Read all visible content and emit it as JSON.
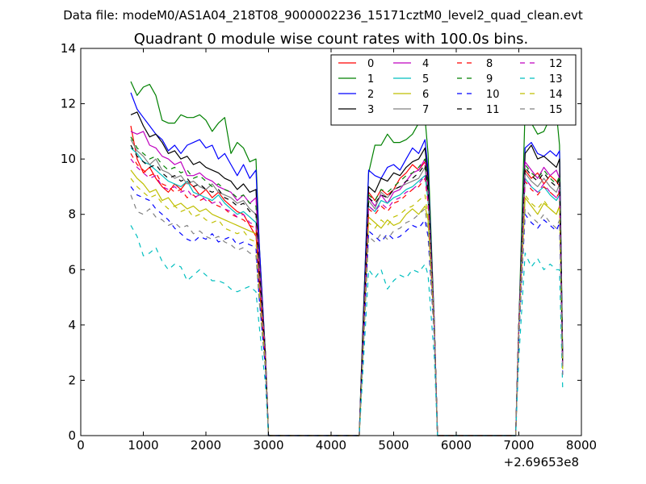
{
  "header": {
    "data_file_label": "Data file: modeM0/AS1A04_218T08_9000002236_15171cztM0_level2_quad_clean.evt"
  },
  "chart_data": {
    "type": "line",
    "title": "Quadrant 0 module wise count rates with 100.0s bins.",
    "xlabel": "",
    "ylabel": "",
    "x_offset_label": "+2.69653e8",
    "xlim": [
      0,
      8000
    ],
    "ylim": [
      0,
      14
    ],
    "xticks": [
      0,
      1000,
      2000,
      3000,
      4000,
      5000,
      6000,
      7000,
      8000
    ],
    "yticks": [
      0,
      2,
      4,
      6,
      8,
      10,
      12,
      14
    ],
    "grid": false,
    "legend_position": "top-right",
    "legend_columns": 4,
    "x": [
      800,
      900,
      1000,
      1100,
      1200,
      1300,
      1400,
      1500,
      1600,
      1700,
      1800,
      1900,
      2000,
      2100,
      2200,
      2300,
      2400,
      2500,
      2600,
      2700,
      2800,
      2850,
      2950,
      3000,
      3100,
      3500,
      4000,
      4400,
      4450,
      4500,
      4600,
      4700,
      4800,
      4900,
      5000,
      5100,
      5200,
      5300,
      5400,
      5500,
      5550,
      5650,
      5700,
      5800,
      6000,
      6500,
      6900,
      6950,
      7000,
      7100,
      7200,
      7300,
      7400,
      7500,
      7600,
      7650,
      7700
    ],
    "series": [
      {
        "name": "0",
        "color": "#ff0000",
        "dash": "solid",
        "values": [
          11.2,
          10.0,
          9.5,
          9.7,
          9.3,
          9.0,
          8.8,
          9.1,
          8.9,
          9.2,
          9.0,
          8.7,
          8.9,
          8.6,
          8.8,
          8.5,
          8.3,
          8.1,
          8.0,
          7.6,
          7.2,
          6.0,
          3.0,
          0.0,
          0.0,
          0.0,
          0.0,
          0.0,
          0.0,
          3.0,
          8.8,
          8.5,
          8.9,
          8.7,
          8.9,
          9.3,
          9.5,
          9.8,
          9.6,
          9.9,
          9.0,
          4.0,
          0.0,
          0.0,
          0.0,
          0.0,
          0.0,
          0.0,
          4.0,
          9.6,
          9.3,
          9.5,
          9.1,
          9.4,
          9.2,
          9.0,
          2.6
        ]
      },
      {
        "name": "1",
        "color": "#008000",
        "dash": "solid",
        "values": [
          12.8,
          12.3,
          12.6,
          12.7,
          12.3,
          11.4,
          11.3,
          11.3,
          11.6,
          11.5,
          11.5,
          11.6,
          11.4,
          11.0,
          11.3,
          11.5,
          10.2,
          10.6,
          10.4,
          9.9,
          10.0,
          7.0,
          3.0,
          0.0,
          0.0,
          0.0,
          0.0,
          0.0,
          0.0,
          3.5,
          9.5,
          10.5,
          10.5,
          10.9,
          10.6,
          10.6,
          10.7,
          10.9,
          11.3,
          11.5,
          10.2,
          4.0,
          0.0,
          0.0,
          0.0,
          0.0,
          0.0,
          0.0,
          4.0,
          11.8,
          11.3,
          10.9,
          11.0,
          11.5,
          11.7,
          10.5,
          3.0
        ]
      },
      {
        "name": "2",
        "color": "#0000ff",
        "dash": "solid",
        "values": [
          12.4,
          11.8,
          11.5,
          11.2,
          10.9,
          10.7,
          10.3,
          10.5,
          10.2,
          10.5,
          10.6,
          10.7,
          10.4,
          10.5,
          10.0,
          10.2,
          9.8,
          9.4,
          9.8,
          9.3,
          9.6,
          7.0,
          3.0,
          0.0,
          0.0,
          0.0,
          0.0,
          0.0,
          0.0,
          3.3,
          9.6,
          9.4,
          9.3,
          9.7,
          9.8,
          9.6,
          10.0,
          10.4,
          10.2,
          10.7,
          9.6,
          4.0,
          0.0,
          0.0,
          0.0,
          0.0,
          0.0,
          0.0,
          4.0,
          10.4,
          10.6,
          10.2,
          10.1,
          10.3,
          10.1,
          10.3,
          2.8
        ]
      },
      {
        "name": "3",
        "color": "#000000",
        "dash": "solid",
        "values": [
          11.6,
          11.7,
          11.2,
          10.8,
          10.9,
          10.6,
          10.2,
          10.3,
          10.0,
          10.1,
          9.8,
          9.9,
          9.7,
          9.6,
          9.5,
          9.3,
          9.2,
          8.9,
          9.1,
          8.8,
          8.9,
          6.5,
          3.0,
          0.0,
          0.0,
          0.0,
          0.0,
          0.0,
          0.0,
          3.2,
          9.0,
          8.8,
          9.3,
          9.2,
          9.5,
          9.4,
          9.7,
          9.9,
          10.0,
          10.4,
          9.3,
          4.0,
          0.0,
          0.0,
          0.0,
          0.0,
          0.0,
          0.0,
          4.0,
          10.2,
          10.5,
          10.0,
          10.1,
          9.9,
          9.7,
          10.0,
          2.7
        ]
      },
      {
        "name": "4",
        "color": "#bf00bf",
        "dash": "solid",
        "values": [
          11.0,
          10.9,
          11.0,
          10.5,
          10.4,
          10.1,
          10.0,
          9.8,
          9.9,
          9.4,
          9.4,
          9.5,
          9.3,
          9.2,
          9.0,
          8.9,
          8.8,
          8.5,
          8.7,
          8.4,
          8.6,
          6.4,
          3.0,
          0.0,
          0.0,
          0.0,
          0.0,
          0.0,
          0.0,
          3.0,
          8.6,
          8.3,
          8.7,
          8.4,
          8.8,
          8.9,
          9.2,
          9.5,
          9.6,
          10.0,
          8.9,
          4.0,
          0.0,
          0.0,
          0.0,
          0.0,
          0.0,
          0.0,
          4.0,
          9.9,
          9.6,
          9.3,
          9.7,
          9.4,
          9.6,
          9.3,
          2.6
        ]
      },
      {
        "name": "5",
        "color": "#00bfbf",
        "dash": "solid",
        "values": [
          10.4,
          10.2,
          9.9,
          9.8,
          9.6,
          9.4,
          9.2,
          9.1,
          9.0,
          9.2,
          8.8,
          8.7,
          8.6,
          8.5,
          8.7,
          8.4,
          8.2,
          8.0,
          8.1,
          7.9,
          7.7,
          5.8,
          2.8,
          0.0,
          0.0,
          0.0,
          0.0,
          0.0,
          0.0,
          2.8,
          8.3,
          8.1,
          8.5,
          8.4,
          8.6,
          8.7,
          8.9,
          9.0,
          9.2,
          9.4,
          8.5,
          4.0,
          0.0,
          0.0,
          0.0,
          0.0,
          0.0,
          0.0,
          4.0,
          9.3,
          9.0,
          8.8,
          9.0,
          8.7,
          8.5,
          8.7,
          2.5
        ]
      },
      {
        "name": "6",
        "color": "#bfbf00",
        "dash": "solid",
        "values": [
          9.6,
          9.3,
          9.1,
          8.8,
          8.9,
          8.5,
          8.6,
          8.3,
          8.4,
          8.2,
          8.3,
          8.1,
          8.2,
          8.0,
          7.9,
          7.8,
          7.7,
          7.6,
          7.5,
          7.4,
          7.3,
          5.5,
          2.7,
          0.0,
          0.0,
          0.0,
          0.0,
          0.0,
          0.0,
          2.6,
          7.9,
          7.7,
          7.5,
          7.8,
          7.6,
          7.7,
          8.0,
          8.2,
          8.0,
          8.3,
          7.8,
          3.8,
          0.0,
          0.0,
          0.0,
          0.0,
          0.0,
          0.0,
          3.8,
          8.6,
          8.3,
          8.0,
          8.4,
          8.2,
          8.0,
          8.3,
          2.4
        ]
      },
      {
        "name": "7",
        "color": "#808080",
        "dash": "solid",
        "values": [
          10.7,
          10.3,
          10.1,
          9.8,
          10.0,
          9.6,
          9.5,
          9.3,
          9.4,
          9.1,
          9.2,
          9.0,
          8.9,
          9.1,
          8.8,
          8.7,
          8.6,
          8.4,
          8.5,
          8.2,
          8.0,
          6.0,
          2.9,
          0.0,
          0.0,
          0.0,
          0.0,
          0.0,
          0.0,
          2.9,
          8.5,
          8.2,
          8.8,
          8.6,
          8.9,
          9.0,
          9.1,
          9.2,
          9.3,
          9.7,
          8.7,
          4.0,
          0.0,
          0.0,
          0.0,
          0.0,
          0.0,
          0.0,
          4.0,
          9.5,
          9.2,
          9.0,
          9.3,
          9.0,
          8.8,
          9.1,
          2.5
        ]
      },
      {
        "name": "8",
        "color": "#ff0000",
        "dash": "dashed",
        "values": [
          10.2,
          9.8,
          9.6,
          9.4,
          9.5,
          9.1,
          9.0,
          8.8,
          8.9,
          8.6,
          8.7,
          8.5,
          8.6,
          8.4,
          8.3,
          8.2,
          8.0,
          7.9,
          7.8,
          7.6,
          7.5,
          5.6,
          2.8,
          0.0,
          0.0,
          0.0,
          0.0,
          0.0,
          0.0,
          2.8,
          8.2,
          8.0,
          8.3,
          8.1,
          8.4,
          8.5,
          8.7,
          8.9,
          9.0,
          9.3,
          8.4,
          3.9,
          0.0,
          0.0,
          0.0,
          0.0,
          0.0,
          0.0,
          3.9,
          9.2,
          8.9,
          8.7,
          9.0,
          8.8,
          8.6,
          8.8,
          2.4
        ]
      },
      {
        "name": "9",
        "color": "#008000",
        "dash": "dashed",
        "values": [
          10.8,
          10.4,
          10.2,
          10.0,
          10.1,
          9.8,
          9.6,
          9.7,
          9.5,
          9.6,
          9.3,
          9.4,
          9.2,
          9.0,
          9.1,
          8.9,
          8.8,
          8.6,
          8.7,
          8.4,
          8.3,
          6.2,
          3.0,
          0.0,
          0.0,
          0.0,
          0.0,
          0.0,
          0.0,
          3.0,
          8.7,
          8.5,
          8.9,
          8.8,
          9.0,
          9.2,
          9.4,
          9.5,
          9.7,
          10.0,
          9.0,
          4.0,
          0.0,
          0.0,
          0.0,
          0.0,
          0.0,
          0.0,
          4.0,
          9.8,
          9.5,
          9.3,
          9.6,
          9.3,
          9.1,
          9.4,
          2.6
        ]
      },
      {
        "name": "10",
        "color": "#0000ff",
        "dash": "dashed",
        "values": [
          9.0,
          8.7,
          8.6,
          8.5,
          8.2,
          8.0,
          7.8,
          7.5,
          7.3,
          7.1,
          7.0,
          7.2,
          7.1,
          7.3,
          7.0,
          7.1,
          7.2,
          6.9,
          7.0,
          6.9,
          6.8,
          5.0,
          2.5,
          0.0,
          0.0,
          0.0,
          0.0,
          0.0,
          0.0,
          2.5,
          7.4,
          7.2,
          7.0,
          7.3,
          7.1,
          7.2,
          7.4,
          7.6,
          7.5,
          7.8,
          7.2,
          3.5,
          0.0,
          0.0,
          0.0,
          0.0,
          0.0,
          0.0,
          3.5,
          8.0,
          7.7,
          7.5,
          7.8,
          7.6,
          7.4,
          7.7,
          2.2
        ]
      },
      {
        "name": "11",
        "color": "#000000",
        "dash": "dashed",
        "values": [
          10.5,
          10.1,
          9.9,
          9.7,
          9.8,
          9.5,
          9.3,
          9.4,
          9.2,
          9.3,
          9.0,
          9.1,
          8.9,
          8.8,
          8.9,
          8.6,
          8.5,
          8.3,
          8.4,
          8.1,
          8.0,
          6.0,
          2.9,
          0.0,
          0.0,
          0.0,
          0.0,
          0.0,
          0.0,
          2.9,
          8.6,
          8.4,
          8.7,
          8.6,
          8.9,
          9.0,
          9.2,
          9.3,
          9.5,
          9.8,
          8.8,
          4.0,
          0.0,
          0.0,
          0.0,
          0.0,
          0.0,
          0.0,
          4.0,
          9.7,
          9.4,
          9.2,
          9.5,
          9.2,
          9.0,
          9.3,
          2.5
        ]
      },
      {
        "name": "12",
        "color": "#bf00bf",
        "dash": "dashed",
        "values": [
          10.0,
          9.7,
          9.5,
          9.3,
          9.4,
          9.0,
          8.9,
          9.0,
          8.8,
          8.9,
          8.6,
          8.7,
          8.5,
          8.4,
          8.5,
          8.2,
          8.1,
          7.9,
          8.0,
          7.7,
          7.6,
          5.7,
          2.8,
          0.0,
          0.0,
          0.0,
          0.0,
          0.0,
          0.0,
          2.8,
          8.3,
          8.1,
          8.4,
          8.2,
          8.5,
          8.6,
          8.8,
          8.9,
          9.1,
          9.4,
          8.5,
          3.9,
          0.0,
          0.0,
          0.0,
          0.0,
          0.0,
          0.0,
          3.9,
          9.3,
          9.0,
          8.8,
          9.1,
          8.8,
          8.6,
          8.9,
          2.4
        ]
      },
      {
        "name": "13",
        "color": "#00bfbf",
        "dash": "dashed",
        "values": [
          7.6,
          7.2,
          6.5,
          6.6,
          6.8,
          6.3,
          6.0,
          6.2,
          6.1,
          5.6,
          5.8,
          6.0,
          5.8,
          5.6,
          5.6,
          5.5,
          5.3,
          5.2,
          5.3,
          5.4,
          5.2,
          4.0,
          1.9,
          0.0,
          0.0,
          0.0,
          0.0,
          0.0,
          0.0,
          2.0,
          6.0,
          5.7,
          6.0,
          5.3,
          5.6,
          5.8,
          5.7,
          6.0,
          5.9,
          6.2,
          5.8,
          2.8,
          0.0,
          0.0,
          0.0,
          0.0,
          0.0,
          0.0,
          2.8,
          6.6,
          6.1,
          6.4,
          6.0,
          6.2,
          6.0,
          6.0,
          1.7
        ]
      },
      {
        "name": "14",
        "color": "#bfbf00",
        "dash": "dashed",
        "values": [
          9.3,
          9.0,
          8.8,
          8.6,
          8.7,
          8.4,
          8.2,
          8.3,
          8.1,
          8.2,
          7.9,
          8.0,
          7.8,
          7.7,
          7.8,
          7.5,
          7.4,
          7.3,
          7.4,
          7.1,
          7.0,
          5.3,
          2.6,
          0.0,
          0.0,
          0.0,
          0.0,
          0.0,
          0.0,
          2.6,
          7.7,
          7.5,
          7.8,
          7.6,
          7.9,
          8.0,
          8.2,
          8.3,
          8.5,
          8.7,
          7.9,
          3.7,
          0.0,
          0.0,
          0.0,
          0.0,
          0.0,
          0.0,
          3.7,
          8.7,
          8.4,
          8.2,
          8.5,
          8.2,
          8.0,
          8.3,
          2.3
        ]
      },
      {
        "name": "15",
        "color": "#808080",
        "dash": "dashed",
        "values": [
          8.7,
          8.1,
          8.0,
          8.2,
          7.9,
          7.8,
          7.6,
          7.7,
          7.5,
          7.6,
          7.3,
          7.4,
          7.2,
          7.1,
          7.2,
          7.0,
          6.9,
          6.7,
          6.8,
          6.6,
          6.5,
          4.9,
          2.4,
          0.0,
          0.0,
          0.0,
          0.0,
          0.0,
          0.0,
          2.4,
          7.2,
          7.0,
          7.3,
          7.1,
          7.4,
          7.5,
          7.7,
          7.8,
          8.0,
          8.2,
          7.4,
          3.5,
          0.0,
          0.0,
          0.0,
          0.0,
          0.0,
          0.0,
          3.5,
          8.2,
          7.9,
          7.7,
          8.0,
          7.7,
          7.5,
          7.8,
          2.2
        ]
      }
    ]
  }
}
